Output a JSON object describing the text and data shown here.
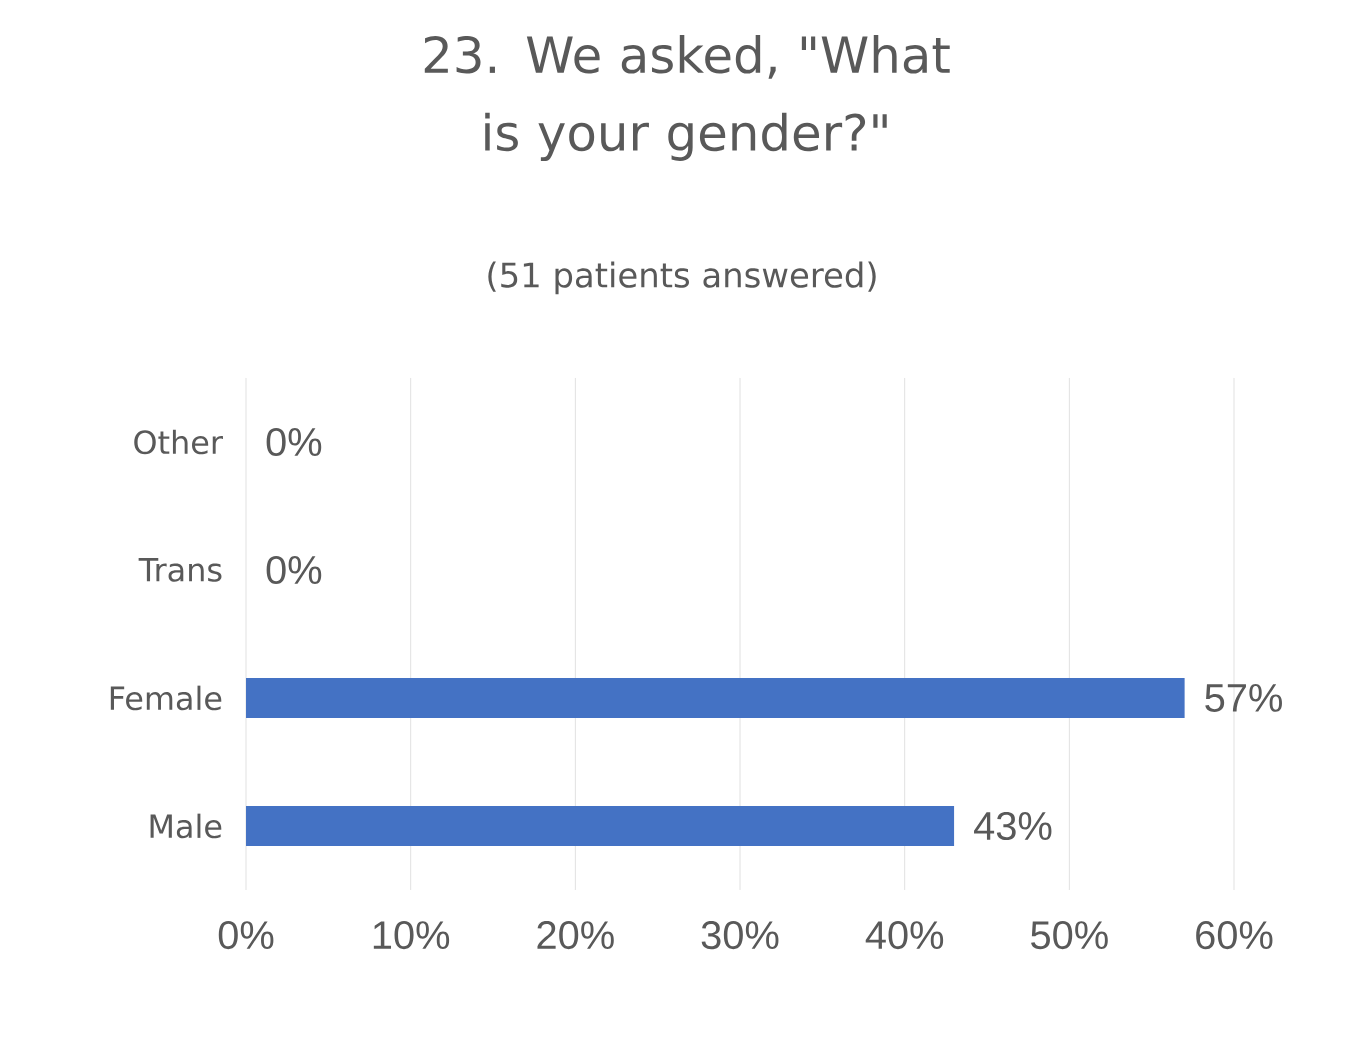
{
  "chart_data": {
    "type": "bar",
    "orientation": "horizontal",
    "title": "23. We asked, \"What is your gender?\"",
    "subtitle": "(51 patients answered)",
    "categories": [
      "Other",
      "Trans",
      "Female",
      "Male"
    ],
    "values": [
      0,
      0,
      57,
      43
    ],
    "value_labels": [
      "0%",
      "0%",
      "57%",
      "43%"
    ],
    "color": "#4472c4",
    "xlim": [
      0,
      60
    ],
    "xticks": [
      {
        "value": 0,
        "label": "0%"
      },
      {
        "value": 10,
        "label": "10%"
      },
      {
        "value": 20,
        "label": "20%"
      },
      {
        "value": 30,
        "label": "30%"
      },
      {
        "value": 40,
        "label": "40%"
      },
      {
        "value": 50,
        "label": "50%"
      },
      {
        "value": 60,
        "label": "60%"
      }
    ],
    "grid": "x"
  }
}
